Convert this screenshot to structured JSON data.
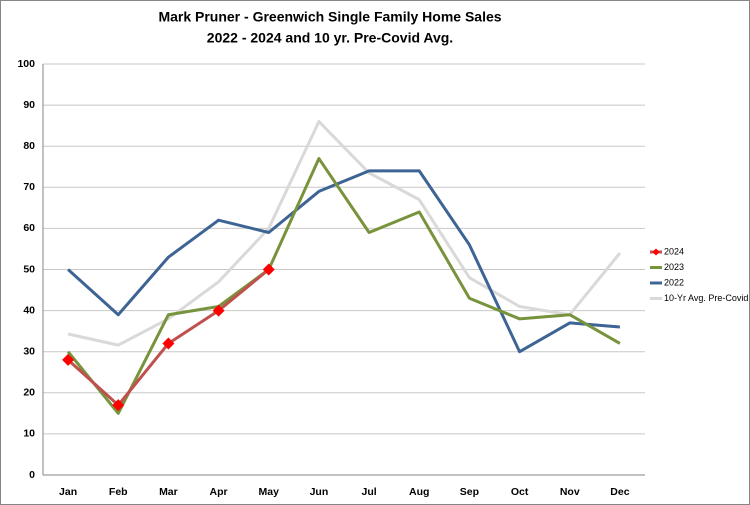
{
  "chart_data": {
    "type": "line",
    "title": "Mark Pruner - Greenwich Single Family Home Sales",
    "subtitle": "2022 - 2024 and 10 yr. Pre-Covid Avg.",
    "categories": [
      "Jan",
      "Feb",
      "Mar",
      "Apr",
      "May",
      "Jun",
      "Jul",
      "Aug",
      "Sep",
      "Oct",
      "Nov",
      "Dec"
    ],
    "series": [
      {
        "name": "2024",
        "color": "#c0504d",
        "marker_color": "#ff0000",
        "values": [
          28,
          17,
          32,
          40,
          50,
          null,
          null,
          null,
          null,
          null,
          null,
          null
        ]
      },
      {
        "name": "2023",
        "color": "#77933c",
        "values": [
          30,
          15,
          39,
          41,
          50,
          77,
          59,
          64,
          43,
          38,
          39,
          32
        ]
      },
      {
        "name": "2022",
        "color": "#3d6494",
        "values": [
          50,
          39,
          53,
          62,
          59,
          69,
          74,
          74,
          56,
          30,
          37,
          36
        ]
      },
      {
        "name": "10-Yr Avg. Pre-Covid",
        "color": "#d9d9d9",
        "values": [
          34.3,
          31.6,
          38,
          47,
          60,
          86,
          73.5,
          67,
          48,
          41,
          39,
          54
        ]
      }
    ],
    "ylim": [
      0,
      100
    ],
    "yticks": [
      0,
      10,
      20,
      30,
      40,
      50,
      60,
      70,
      80,
      90,
      100
    ],
    "grid": true,
    "legend": "right"
  }
}
